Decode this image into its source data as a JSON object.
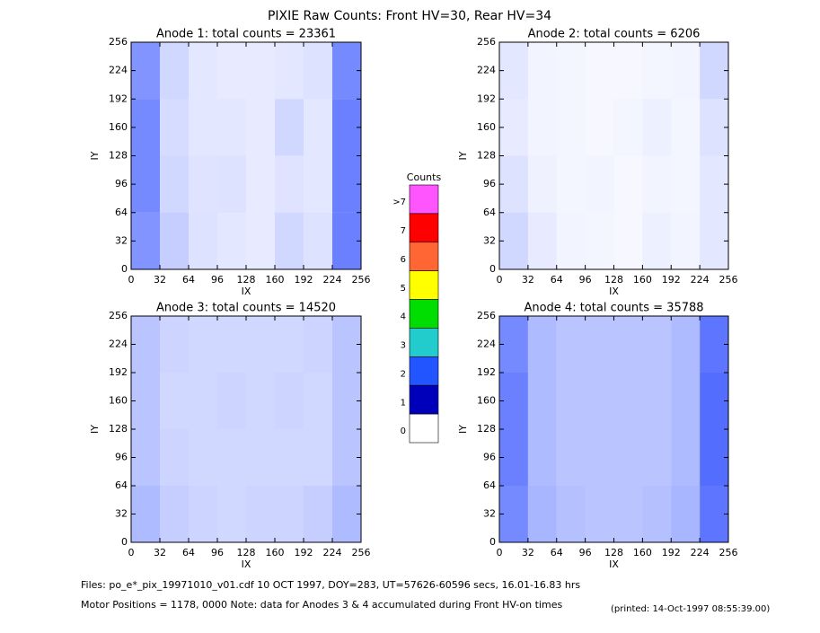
{
  "title": "PIXIE Raw Counts:  Front HV=30, Rear HV=34",
  "chart_data": [
    {
      "type": "heatmap",
      "title": "Anode 1: total counts = 23361",
      "xlabel": "IX",
      "ylabel": "IY",
      "color": "#1a3cff",
      "xlim": [
        0,
        256
      ],
      "ylim": [
        0,
        256
      ],
      "xticks": [
        0,
        32,
        64,
        96,
        128,
        160,
        192,
        224,
        256
      ],
      "yticks": [
        0,
        32,
        64,
        96,
        128,
        160,
        192,
        224,
        256
      ],
      "density": [
        [
          0.55,
          0.2,
          0.12,
          0.1,
          0.1,
          0.12,
          0.15,
          0.6
        ],
        [
          0.6,
          0.18,
          0.12,
          0.12,
          0.1,
          0.2,
          0.12,
          0.65
        ],
        [
          0.6,
          0.2,
          0.14,
          0.15,
          0.1,
          0.14,
          0.12,
          0.65
        ],
        [
          0.55,
          0.25,
          0.15,
          0.12,
          0.1,
          0.2,
          0.15,
          0.65
        ]
      ]
    },
    {
      "type": "heatmap",
      "title": "Anode 2: total counts = 6206",
      "xlabel": "IX",
      "ylabel": "IY",
      "color": "#1a3cff",
      "xlim": [
        0,
        256
      ],
      "ylim": [
        0,
        256
      ],
      "xticks": [
        0,
        32,
        64,
        96,
        128,
        160,
        192,
        224,
        256
      ],
      "yticks": [
        0,
        32,
        64,
        96,
        128,
        160,
        192,
        224,
        256
      ],
      "density": [
        [
          0.12,
          0.06,
          0.05,
          0.04,
          0.04,
          0.05,
          0.06,
          0.2
        ],
        [
          0.1,
          0.06,
          0.05,
          0.04,
          0.05,
          0.08,
          0.05,
          0.15
        ],
        [
          0.15,
          0.07,
          0.05,
          0.06,
          0.04,
          0.06,
          0.05,
          0.12
        ],
        [
          0.2,
          0.1,
          0.06,
          0.05,
          0.04,
          0.08,
          0.06,
          0.12
        ]
      ]
    },
    {
      "type": "heatmap",
      "title": "Anode 3: total counts = 14520",
      "xlabel": "IX",
      "ylabel": "IY",
      "color": "#1a3cff",
      "xlim": [
        0,
        256
      ],
      "ylim": [
        0,
        256
      ],
      "xticks": [
        0,
        32,
        64,
        96,
        128,
        160,
        192,
        224,
        256
      ],
      "yticks": [
        0,
        32,
        64,
        96,
        128,
        160,
        192,
        224,
        256
      ],
      "density": [
        [
          0.3,
          0.22,
          0.2,
          0.2,
          0.2,
          0.2,
          0.22,
          0.3
        ],
        [
          0.3,
          0.2,
          0.2,
          0.22,
          0.2,
          0.22,
          0.2,
          0.3
        ],
        [
          0.3,
          0.22,
          0.2,
          0.2,
          0.2,
          0.2,
          0.2,
          0.3
        ],
        [
          0.35,
          0.25,
          0.22,
          0.2,
          0.22,
          0.22,
          0.25,
          0.35
        ]
      ]
    },
    {
      "type": "heatmap",
      "title": "Anode 4: total counts = 35788",
      "xlabel": "IX",
      "ylabel": "IY",
      "color": "#1a3cff",
      "xlim": [
        0,
        256
      ],
      "ylim": [
        0,
        256
      ],
      "xticks": [
        0,
        32,
        64,
        96,
        128,
        160,
        192,
        224,
        256
      ],
      "yticks": [
        0,
        32,
        64,
        96,
        128,
        160,
        192,
        224,
        256
      ],
      "density": [
        [
          0.6,
          0.35,
          0.3,
          0.3,
          0.3,
          0.3,
          0.35,
          0.7
        ],
        [
          0.65,
          0.35,
          0.3,
          0.3,
          0.3,
          0.3,
          0.35,
          0.75
        ],
        [
          0.65,
          0.35,
          0.3,
          0.3,
          0.3,
          0.3,
          0.35,
          0.75
        ],
        [
          0.6,
          0.38,
          0.32,
          0.3,
          0.3,
          0.32,
          0.38,
          0.7
        ]
      ]
    }
  ],
  "colorbar": {
    "title": "Counts",
    "levels": [
      {
        "label": ">7",
        "color": "#ff55ff"
      },
      {
        "label": "7",
        "color": "#ff0000"
      },
      {
        "label": "6",
        "color": "#ff6633"
      },
      {
        "label": "5",
        "color": "#ffff00"
      },
      {
        "label": "4",
        "color": "#00dd00"
      },
      {
        "label": "3",
        "color": "#22cccc"
      },
      {
        "label": "2",
        "color": "#2255ff"
      },
      {
        "label": "1",
        "color": "#0000bb"
      },
      {
        "label": "0",
        "color": "#ffffff"
      }
    ]
  },
  "footer": {
    "files": "Files: po_e*_pix_19971010_v01.cdf     10 OCT 1997, DOY=283, UT=57626-60596 secs, 16.01-16.83 hrs",
    "motor": "Motor Positions = 1178, 0000    Note: data for Anodes 3 & 4 accumulated during Front HV-on times",
    "printed": "(printed: 14-Oct-1997 08:55:39.00)"
  }
}
